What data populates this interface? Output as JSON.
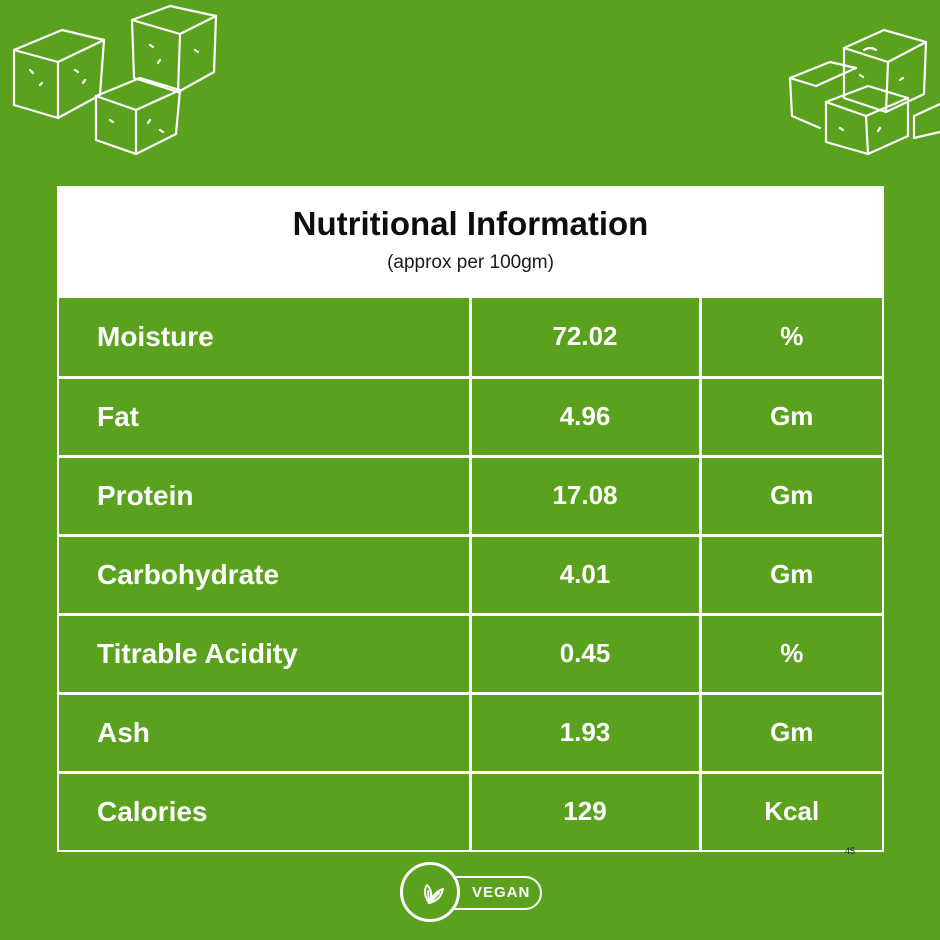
{
  "header": {
    "title": "Nutritional Information",
    "subtitle": "(approx per 100gm)"
  },
  "rows": [
    {
      "nutrient": "Moisture",
      "value": "72.02",
      "unit": "%"
    },
    {
      "nutrient": "Fat",
      "value": "4.96",
      "unit": "Gm"
    },
    {
      "nutrient": "Protein",
      "value": "17.08",
      "unit": "Gm"
    },
    {
      "nutrient": "Carbohydrate",
      "value": "4.01",
      "unit": "Gm"
    },
    {
      "nutrient": "Titrable Acidity",
      "value": "0.45",
      "unit": "%"
    },
    {
      "nutrient": "Ash",
      "value": "1.93",
      "unit": "Gm"
    },
    {
      "nutrient": "Calories",
      "value": "129",
      "unit": "Kcal"
    }
  ],
  "footnote": "45",
  "badge": {
    "label": "VEGAN",
    "icon": "leaf-icon"
  },
  "decor": {
    "icon": "tofu-cube-icon"
  },
  "colors": {
    "background": "#5aa21e",
    "header_bg": "#ffffff",
    "line": "#ffffff"
  }
}
